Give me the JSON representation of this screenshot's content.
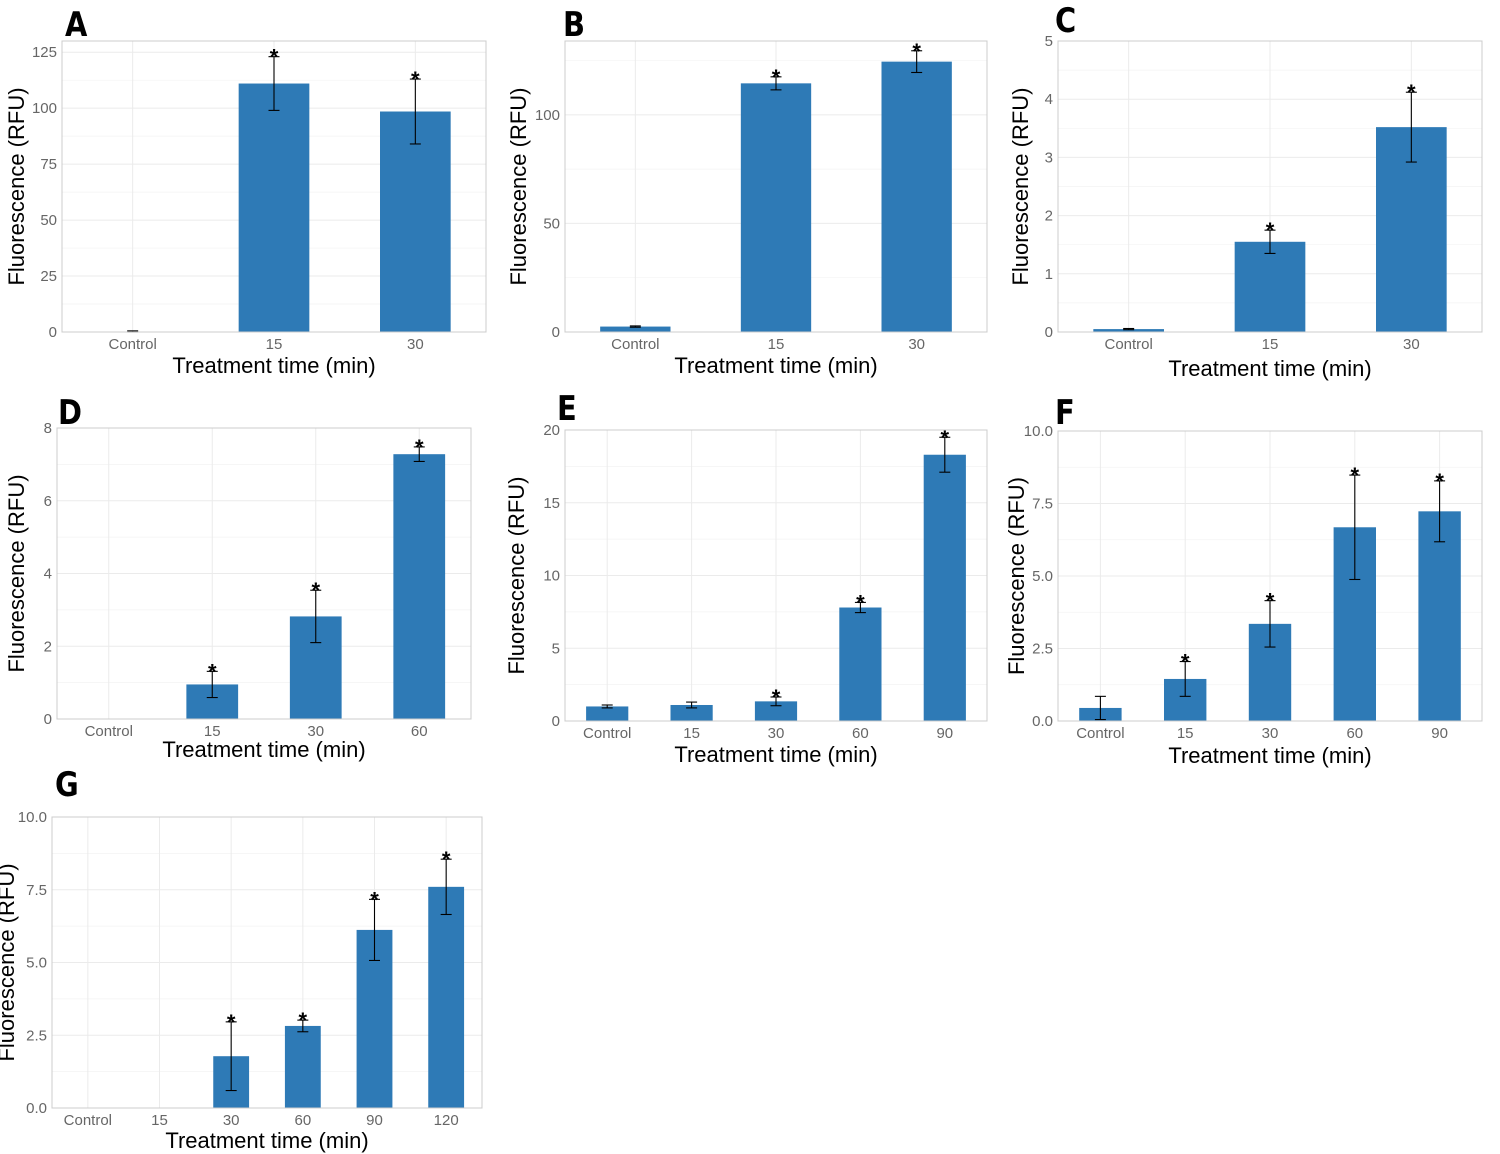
{
  "figure": {
    "bar_color": "#2e7ab6",
    "grid_color": "#ebebeb",
    "border_color": "#cccccc",
    "tick_color": "#666666",
    "text_color": "#000000",
    "significance_marker": "*"
  },
  "chart_data": [
    {
      "panel": "A",
      "type": "bar",
      "categories": [
        "Control",
        "15",
        "30"
      ],
      "values": [
        0.2,
        111,
        98.5
      ],
      "errors": [
        0.3,
        12,
        14.5
      ],
      "significant": [
        false,
        true,
        true
      ],
      "ylim": [
        0,
        130
      ],
      "yticks": [
        0,
        25,
        50,
        75,
        100,
        125
      ],
      "ytick_labels": [
        "0",
        "25",
        "50",
        "75",
        "100",
        "125"
      ],
      "xlabel": "Treatment time (min)",
      "ylabel": "Fluorescence (RFU)",
      "grid": true
    },
    {
      "panel": "B",
      "type": "bar",
      "categories": [
        "Control",
        "15",
        "30"
      ],
      "values": [
        2.5,
        114.5,
        124.5
      ],
      "errors": [
        0.3,
        3,
        5
      ],
      "significant": [
        false,
        true,
        true
      ],
      "ylim": [
        0,
        134
      ],
      "yticks": [
        0,
        50,
        100
      ],
      "ytick_labels": [
        "0",
        "50",
        "100"
      ],
      "xlabel": "Treatment time (min)",
      "ylabel": "Fluorescence (RFU)",
      "grid": true
    },
    {
      "panel": "C",
      "type": "bar",
      "categories": [
        "Control",
        "15",
        "30"
      ],
      "values": [
        0.05,
        1.55,
        3.52
      ],
      "errors": [
        0.01,
        0.2,
        0.6
      ],
      "significant": [
        false,
        true,
        true
      ],
      "ylim": [
        0,
        5
      ],
      "yticks": [
        0,
        1,
        2,
        3,
        4,
        5
      ],
      "ytick_labels": [
        "0",
        "1",
        "2",
        "3",
        "4",
        "5"
      ],
      "xlabel": "Treatment time (min)",
      "ylabel": "Fluorescence (RFU)",
      "grid": true
    },
    {
      "panel": "D",
      "type": "bar",
      "categories": [
        "Control",
        "15",
        "30",
        "60"
      ],
      "values": [
        0,
        0.95,
        2.82,
        7.28
      ],
      "errors": [
        0,
        0.36,
        0.72,
        0.2
      ],
      "significant": [
        false,
        true,
        true,
        true
      ],
      "ylim": [
        0,
        8
      ],
      "yticks": [
        0,
        2,
        4,
        6,
        8
      ],
      "ytick_labels": [
        "0",
        "2",
        "4",
        "6",
        "8"
      ],
      "xlabel": "Treatment time (min)",
      "ylabel": "Fluorescence (RFU)",
      "grid": true
    },
    {
      "panel": "E",
      "type": "bar",
      "categories": [
        "Control",
        "15",
        "30",
        "60",
        "90"
      ],
      "values": [
        1.0,
        1.1,
        1.35,
        7.8,
        18.3
      ],
      "errors": [
        0.1,
        0.2,
        0.3,
        0.35,
        1.2
      ],
      "significant": [
        false,
        false,
        true,
        true,
        true
      ],
      "ylim": [
        0,
        20
      ],
      "yticks": [
        0,
        5,
        10,
        15,
        20
      ],
      "ytick_labels": [
        "0",
        "5",
        "10",
        "15",
        "20"
      ],
      "xlabel": "Treatment time (min)",
      "ylabel": "Fluorescence (RFU)",
      "grid": true
    },
    {
      "panel": "F",
      "type": "bar",
      "categories": [
        "Control",
        "15",
        "30",
        "60",
        "90"
      ],
      "values": [
        0.45,
        1.45,
        3.35,
        6.68,
        7.23
      ],
      "errors": [
        0.4,
        0.6,
        0.8,
        1.8,
        1.05
      ],
      "significant": [
        false,
        true,
        true,
        true,
        true
      ],
      "ylim": [
        0,
        10
      ],
      "yticks": [
        0,
        2.5,
        5,
        7.5,
        10
      ],
      "ytick_labels": [
        "0.0",
        "2.5",
        "5.0",
        "7.5",
        "10.0"
      ],
      "xlabel": "Treatment time (min)",
      "ylabel": "Fluorescence (RFU)",
      "grid": true
    },
    {
      "panel": "G",
      "type": "bar",
      "categories": [
        "Control",
        "15",
        "30",
        "60",
        "90",
        "120"
      ],
      "values": [
        0,
        0,
        1.78,
        2.82,
        6.12,
        7.6
      ],
      "errors": [
        0,
        0,
        1.18,
        0.2,
        1.05,
        0.95
      ],
      "significant": [
        false,
        false,
        true,
        true,
        true,
        true
      ],
      "ylim": [
        0,
        10
      ],
      "yticks": [
        0,
        2.5,
        5,
        7.5,
        10
      ],
      "ytick_labels": [
        "0.0",
        "2.5",
        "5.0",
        "7.5",
        "10.0"
      ],
      "xlabel": "Treatment time (min)",
      "ylabel": "Fluorescence (RFU)",
      "grid": true
    }
  ]
}
